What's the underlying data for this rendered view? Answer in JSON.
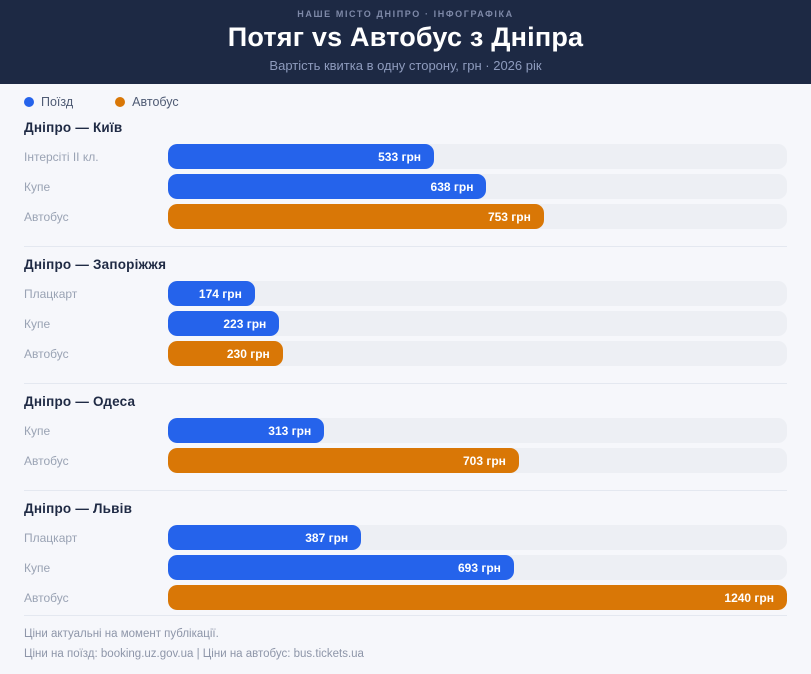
{
  "header": {
    "eyebrow": "НАШЕ МІСТО ДНІПРО · ІНФОГРАФІКА",
    "title": "Потяг vs Автобус з Дніпра",
    "subtitle": "Вартість квитка в одну сторону, грн · 2026 рік"
  },
  "legend": [
    {
      "id": "train",
      "label": "Поїзд",
      "color": "#2563eb"
    },
    {
      "id": "bus",
      "label": "Автобус",
      "color": "#d97706"
    }
  ],
  "chart_data": {
    "type": "bar",
    "orientation": "horizontal",
    "title": "Потяг vs Автобус з Дніпра",
    "subtitle": "Вартість квитка в одну сторону, грн · 2026 рік",
    "unit": "грн",
    "xlim": [
      0,
      1240
    ],
    "grid": false,
    "legend": [
      "Поїзд",
      "Автобус"
    ],
    "legend_position": "top-left",
    "groups": [
      {
        "category": "Дніпро — Київ",
        "bars": [
          {
            "label": "Інтерсіті II кл.",
            "value": 533,
            "series": "Поїзд",
            "display": "533 грн"
          },
          {
            "label": "Купе",
            "value": 638,
            "series": "Поїзд",
            "display": "638 грн"
          },
          {
            "label": "Автобус",
            "value": 753,
            "series": "Автобус",
            "display": "753 грн"
          }
        ]
      },
      {
        "category": "Дніпро — Запоріжжя",
        "bars": [
          {
            "label": "Плацкарт",
            "value": 174,
            "series": "Поїзд",
            "display": "174 грн"
          },
          {
            "label": "Купе",
            "value": 223,
            "series": "Поїзд",
            "display": "223 грн"
          },
          {
            "label": "Автобус",
            "value": 230,
            "series": "Автобус",
            "display": "230 грн"
          }
        ]
      },
      {
        "category": "Дніпро — Одеса",
        "bars": [
          {
            "label": "Купе",
            "value": 313,
            "series": "Поїзд",
            "display": "313 грн"
          },
          {
            "label": "Автобус",
            "value": 703,
            "series": "Автобус",
            "display": "703 грн"
          }
        ]
      },
      {
        "category": "Дніпро — Львів",
        "bars": [
          {
            "label": "Плацкарт",
            "value": 387,
            "series": "Поїзд",
            "display": "387 грн"
          },
          {
            "label": "Купе",
            "value": 693,
            "series": "Поїзд",
            "display": "693 грн"
          },
          {
            "label": "Автобус",
            "value": 1240,
            "series": "Автобус",
            "display": "1240 грн"
          }
        ]
      }
    ]
  },
  "footer": {
    "note": "Ціни актуальні на момент публікації.",
    "sources": "Ціни на поїзд: booking.uz.gov.ua  |  Ціни на автобус: bus.tickets.ua"
  },
  "colors": {
    "train": "#2563eb",
    "bus": "#d97706",
    "header_bg": "#1d2944",
    "page_bg": "#f6f7fb",
    "track_bg": "#edeff4"
  }
}
